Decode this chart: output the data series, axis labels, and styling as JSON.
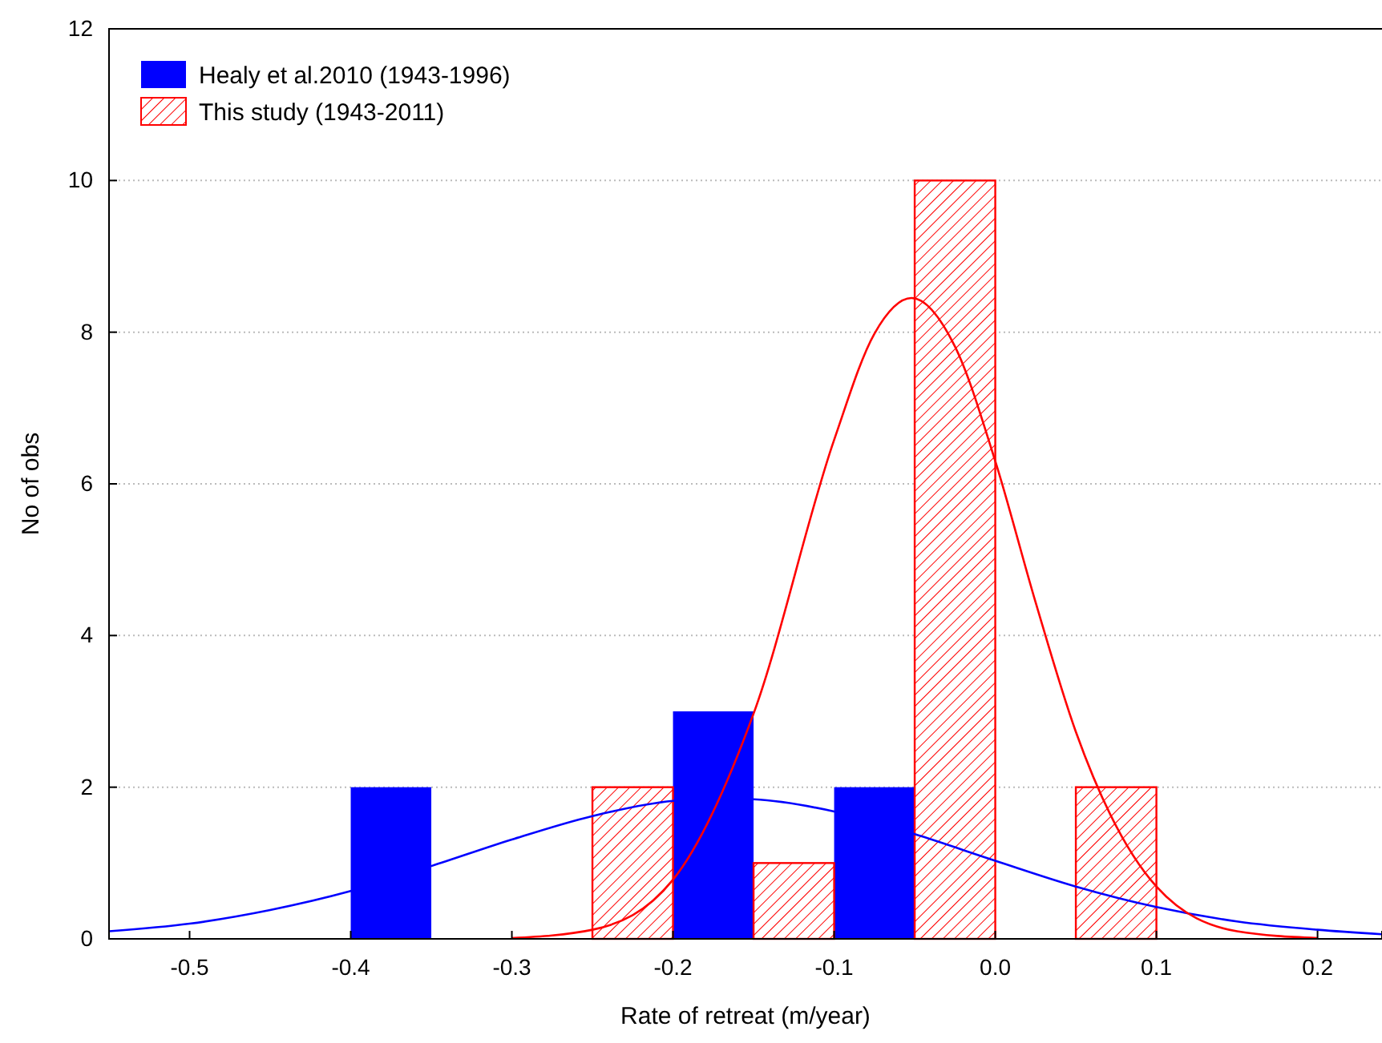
{
  "chart_data": {
    "type": "histogram",
    "xlabel": "Rate of retreat (m/year)",
    "ylabel": "No of obs",
    "bins": [
      -0.4,
      -0.35,
      -0.3,
      -0.25,
      -0.2,
      -0.15,
      -0.1,
      -0.05,
      0,
      0.05,
      0.1
    ],
    "series": [
      {
        "name": "Healy et al.2010 (1943-1996)",
        "color": "#0000ff",
        "values": [
          2,
          0,
          0,
          0,
          3,
          0,
          2,
          0,
          0,
          0
        ]
      },
      {
        "name": "This study (1943-2011)",
        "color": "#ff0000",
        "values": [
          0,
          0,
          0,
          2,
          0,
          1,
          0,
          10,
          0,
          2
        ]
      },
      {
        "type": "line",
        "color": "#0000ff",
        "x": [
          -0.55,
          -0.5,
          -0.45,
          -0.4,
          -0.35,
          -0.3,
          -0.25,
          -0.2,
          -0.17,
          -0.15,
          -0.1,
          -0.05,
          0,
          0.05,
          0.1,
          0.15,
          0.2,
          0.24
        ],
        "values": [
          0.1,
          0.2,
          0.38,
          0.63,
          0.96,
          1.31,
          1.62,
          1.82,
          1.85,
          1.84,
          1.68,
          1.38,
          1.03,
          0.69,
          0.42,
          0.23,
          0.12,
          0.06
        ]
      },
      {
        "type": "line",
        "color": "#ff0000",
        "x": [
          -0.3,
          -0.25,
          -0.2,
          -0.15,
          -0.1,
          -0.075,
          -0.052,
          -0.025,
          0,
          0.025,
          0.05,
          0.1,
          0.15,
          0.2
        ],
        "values": [
          0.01,
          0.12,
          0.78,
          2.97,
          6.58,
          7.98,
          8.45,
          7.81,
          6.3,
          4.44,
          2.73,
          0.69,
          0.1,
          0.01
        ]
      }
    ],
    "xlim": [
      -0.55,
      0.24
    ],
    "xticks": [
      -0.5,
      -0.4,
      -0.3,
      -0.2,
      -0.1,
      {
        "value": 0,
        "label": "0.0"
      },
      0.1,
      0.2
    ],
    "ylim": [
      0,
      12
    ],
    "yticks": [
      0,
      2,
      4,
      6,
      8,
      10,
      12
    ],
    "grid": "y",
    "legend": "top left"
  }
}
